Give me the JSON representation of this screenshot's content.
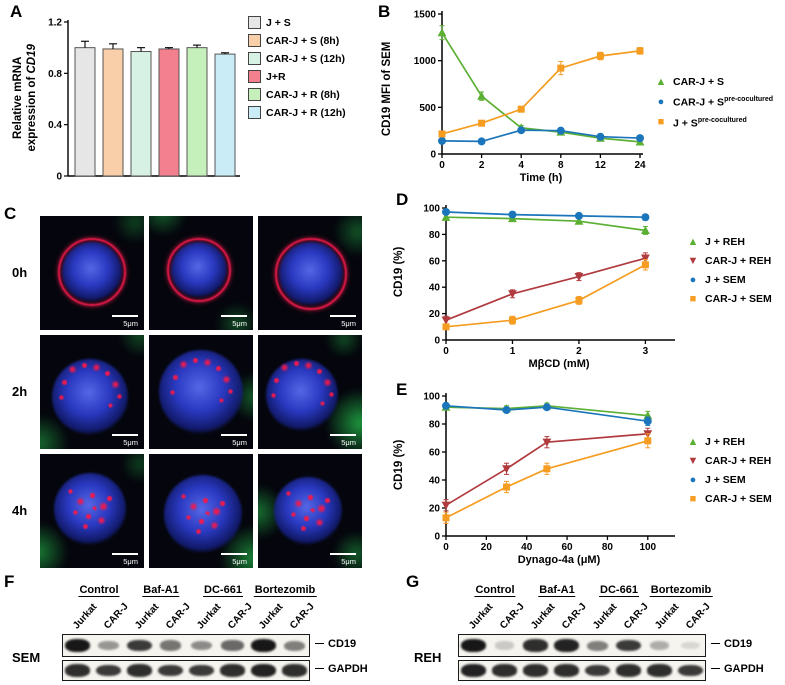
{
  "panels": {
    "A": {
      "letter": "A",
      "ylabel_line1": "Relative mRNA",
      "ylabel_line2_pre": "expression of ",
      "ylabel_gene": "CD19"
    },
    "B": {
      "letter": "B"
    },
    "C": {
      "letter": "C",
      "rows": [
        "0h",
        "2h",
        "4h"
      ],
      "scale_label": "5μm",
      "colors": {
        "nucleus": "#2e3fd4",
        "cd19": "#ef1a4d",
        "car": "#27c94f"
      }
    },
    "D": {
      "letter": "D"
    },
    "E": {
      "letter": "E"
    },
    "F": {
      "letter": "F",
      "side_label": "SEM",
      "treatments": [
        "Control",
        "Baf-A1",
        "DC-661",
        "Bortezomib"
      ],
      "lane_labels": [
        "Jurkat",
        "CAR-J"
      ],
      "band_labels": [
        "CD19",
        "GAPDH"
      ],
      "cd19_band_intensity": [
        0.95,
        0.4,
        0.8,
        0.55,
        0.45,
        0.6,
        0.95,
        0.5
      ],
      "gapdh_band_intensity": [
        0.85,
        0.8,
        0.85,
        0.8,
        0.8,
        0.85,
        0.9,
        0.85
      ]
    },
    "G": {
      "letter": "G",
      "side_label": "REH",
      "treatments": [
        "Control",
        "Baf-A1",
        "DC-661",
        "Bortezomib"
      ],
      "lane_labels": [
        "Jurkat",
        "CAR-J"
      ],
      "band_labels": [
        "CD19",
        "GAPDH"
      ],
      "cd19_band_intensity": [
        0.95,
        0.18,
        0.85,
        0.9,
        0.5,
        0.8,
        0.3,
        0.12
      ],
      "gapdh_band_intensity": [
        0.9,
        0.85,
        0.85,
        0.85,
        0.8,
        0.85,
        0.85,
        0.8
      ]
    }
  },
  "chart_data": [
    {
      "id": "A",
      "type": "bar",
      "title": "",
      "ylabel": "Relative mRNA expression of CD19",
      "xlabel": "",
      "ylim": [
        0,
        1.2
      ],
      "yticks": [
        0,
        0.4,
        0.8,
        1.2
      ],
      "categories": [
        "J + S",
        "CAR-J + S (8h)",
        "CAR-J + S (12h)",
        "J+R",
        "CAR-J + R (8h)",
        "CAR-J + R (12h)"
      ],
      "values": [
        1.0,
        0.99,
        0.97,
        0.99,
        1.0,
        0.95
      ],
      "errors": [
        0.05,
        0.04,
        0.03,
        0.01,
        0.02,
        0.01
      ],
      "colors": [
        "#e6e6e6",
        "#f8cfa8",
        "#d7f2e4",
        "#f3808e",
        "#c6f0bb",
        "#c9ecf7"
      ],
      "legend_position": "right",
      "grid": false
    },
    {
      "id": "B",
      "type": "line",
      "x_mode": "categorical",
      "x_labels": [
        "0",
        "2",
        "4",
        "8",
        "12",
        "24"
      ],
      "xlabel": "Time (h)",
      "ylabel": "CD19 MFI of SEM",
      "ylim": [
        0,
        1500
      ],
      "yticks": [
        0,
        500,
        1000,
        1500
      ],
      "legend_position": "right",
      "grid": false,
      "series": [
        {
          "name": "CAR-J + S",
          "marker": "triangle-up",
          "color": "#5bb033",
          "values": [
            1300,
            620,
            280,
            235,
            170,
            130
          ],
          "errors": [
            75,
            45,
            25,
            20,
            15,
            10
          ]
        },
        {
          "name": "CAR-J + S",
          "sup": "pre-cocultured",
          "marker": "circle",
          "color": "#1b75bb",
          "values": [
            140,
            135,
            255,
            250,
            185,
            170
          ],
          "errors": [
            15,
            15,
            20,
            20,
            15,
            10
          ]
        },
        {
          "name": "J + S",
          "sup": "pre-cocultured",
          "marker": "square",
          "color": "#f59c21",
          "values": [
            215,
            330,
            480,
            920,
            1050,
            1105
          ],
          "errors": [
            20,
            25,
            30,
            70,
            40,
            35
          ]
        }
      ]
    },
    {
      "id": "D",
      "type": "line",
      "x_mode": "linear",
      "xlim": [
        0,
        3.4
      ],
      "xticks": [
        0,
        1,
        2,
        3
      ],
      "xlabel": "MβCD (mM)",
      "ylabel": "CD19 (%)",
      "ylim": [
        0,
        100
      ],
      "yticks": [
        0,
        20,
        40,
        60,
        80,
        100
      ],
      "legend_position": "right",
      "grid": false,
      "series": [
        {
          "name": "J + REH",
          "marker": "triangle-up",
          "color": "#5bb033",
          "x": [
            0,
            1,
            2,
            3
          ],
          "values": [
            93,
            92,
            90,
            83
          ],
          "errors": [
            2,
            2,
            2,
            3
          ]
        },
        {
          "name": "CAR-J + REH",
          "marker": "triangle-down",
          "color": "#b03a3e",
          "x": [
            0,
            1,
            2,
            3
          ],
          "values": [
            15,
            35,
            48,
            62
          ],
          "errors": [
            3,
            3,
            3,
            4
          ]
        },
        {
          "name": "J + SEM",
          "marker": "circle",
          "color": "#1b75bb",
          "x": [
            0,
            1,
            2,
            3
          ],
          "values": [
            97,
            95,
            94,
            93
          ],
          "errors": [
            1,
            2,
            2,
            2
          ]
        },
        {
          "name": "CAR-J + SEM",
          "marker": "square",
          "color": "#f59c21",
          "x": [
            0,
            1,
            2,
            3
          ],
          "values": [
            10,
            15,
            30,
            57
          ],
          "errors": [
            2,
            3,
            3,
            4
          ]
        }
      ]
    },
    {
      "id": "E",
      "type": "line",
      "x_mode": "linear",
      "xlim": [
        0,
        112
      ],
      "xticks": [
        0,
        20,
        40,
        60,
        80,
        100
      ],
      "xlabel": "Dynago-4a (μM)",
      "ylabel": "CD19 (%)",
      "ylim": [
        0,
        100
      ],
      "yticks": [
        0,
        20,
        40,
        60,
        80,
        100
      ],
      "legend_position": "right",
      "grid": false,
      "series": [
        {
          "name": "J + REH",
          "marker": "triangle-up",
          "color": "#5bb033",
          "x": [
            0,
            30,
            50,
            100
          ],
          "values": [
            92,
            91,
            93,
            86
          ],
          "errors": [
            2,
            2,
            2,
            3
          ]
        },
        {
          "name": "CAR-J + REH",
          "marker": "triangle-down",
          "color": "#b03a3e",
          "x": [
            0,
            30,
            50,
            100
          ],
          "values": [
            22,
            48,
            67,
            73
          ],
          "errors": [
            4,
            4,
            4,
            4
          ]
        },
        {
          "name": "J + SEM",
          "marker": "circle",
          "color": "#1b75bb",
          "x": [
            0,
            30,
            50,
            100
          ],
          "values": [
            93,
            90,
            92,
            82
          ],
          "errors": [
            2,
            2,
            2,
            3
          ]
        },
        {
          "name": "CAR-J + SEM",
          "marker": "square",
          "color": "#f59c21",
          "x": [
            0,
            30,
            50,
            100
          ],
          "values": [
            13,
            35,
            48,
            68
          ],
          "errors": [
            4,
            4,
            4,
            5
          ]
        }
      ]
    }
  ]
}
